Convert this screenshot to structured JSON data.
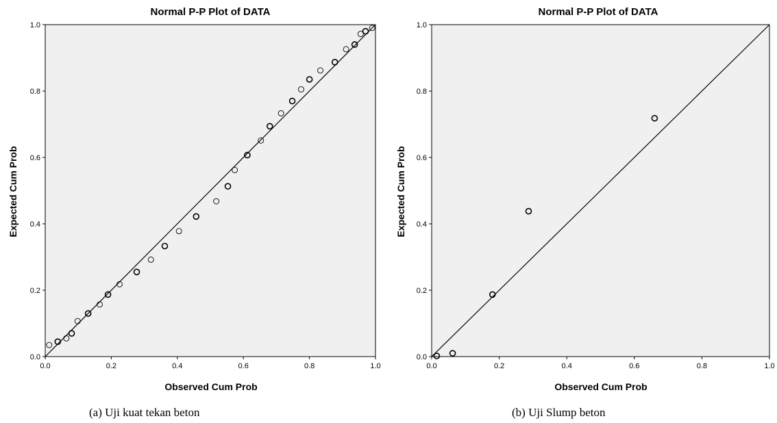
{
  "captions": [
    "(a)    Uji kuat tekan beton",
    "(b) Uji Slump beton"
  ],
  "chart_data": [
    {
      "type": "scatter",
      "title": "Normal P-P Plot of DATA",
      "xlabel": "Observed Cum Prob",
      "ylabel": "Expected Cum Prob",
      "xlim": [
        0,
        1
      ],
      "ylim": [
        0,
        1
      ],
      "xticks": [
        "0.0",
        "0.2",
        "0.4",
        "0.6",
        "0.8",
        "1.0"
      ],
      "yticks": [
        "0.0",
        "0.2",
        "0.4",
        "0.6",
        "0.8",
        "1.0"
      ],
      "reference_line": [
        [
          0,
          0
        ],
        [
          1,
          1
        ]
      ],
      "grid": false,
      "series": [
        {
          "points": [
            [
              0.012,
              0.035
            ],
            [
              0.038,
              0.045
            ],
            [
              0.064,
              0.055
            ],
            [
              0.08,
              0.07
            ],
            [
              0.098,
              0.107
            ],
            [
              0.13,
              0.13
            ],
            [
              0.165,
              0.157
            ],
            [
              0.19,
              0.187
            ],
            [
              0.225,
              0.218
            ],
            [
              0.277,
              0.255
            ],
            [
              0.32,
              0.292
            ],
            [
              0.362,
              0.333
            ],
            [
              0.405,
              0.378
            ],
            [
              0.457,
              0.422
            ],
            [
              0.518,
              0.468
            ],
            [
              0.553,
              0.513
            ],
            [
              0.574,
              0.562
            ],
            [
              0.612,
              0.607
            ],
            [
              0.653,
              0.651
            ],
            [
              0.68,
              0.694
            ],
            [
              0.714,
              0.733
            ],
            [
              0.748,
              0.77
            ],
            [
              0.775,
              0.805
            ],
            [
              0.8,
              0.835
            ],
            [
              0.833,
              0.862
            ],
            [
              0.877,
              0.887
            ],
            [
              0.911,
              0.926
            ],
            [
              0.937,
              0.94
            ],
            [
              0.955,
              0.972
            ],
            [
              0.97,
              0.98
            ],
            [
              0.99,
              0.99
            ]
          ]
        }
      ]
    },
    {
      "type": "scatter",
      "title": "Normal P-P Plot of DATA",
      "xlabel": "Observed Cum Prob",
      "ylabel": "Expected Cum Prob",
      "xlim": [
        0,
        1
      ],
      "ylim": [
        0,
        1
      ],
      "xticks": [
        "0.0",
        "0.2",
        "0.4",
        "0.6",
        "0.8",
        "1.0"
      ],
      "yticks": [
        "0.0",
        "0.2",
        "0.4",
        "0.6",
        "0.8",
        "1.0"
      ],
      "reference_line": [
        [
          0,
          0
        ],
        [
          1,
          1
        ]
      ],
      "grid": false,
      "series": [
        {
          "points": [
            [
              0.015,
              0.002
            ],
            [
              0.062,
              0.01
            ],
            [
              0.18,
              0.187
            ],
            [
              0.287,
              0.438
            ],
            [
              0.66,
              0.718
            ]
          ]
        }
      ]
    }
  ]
}
